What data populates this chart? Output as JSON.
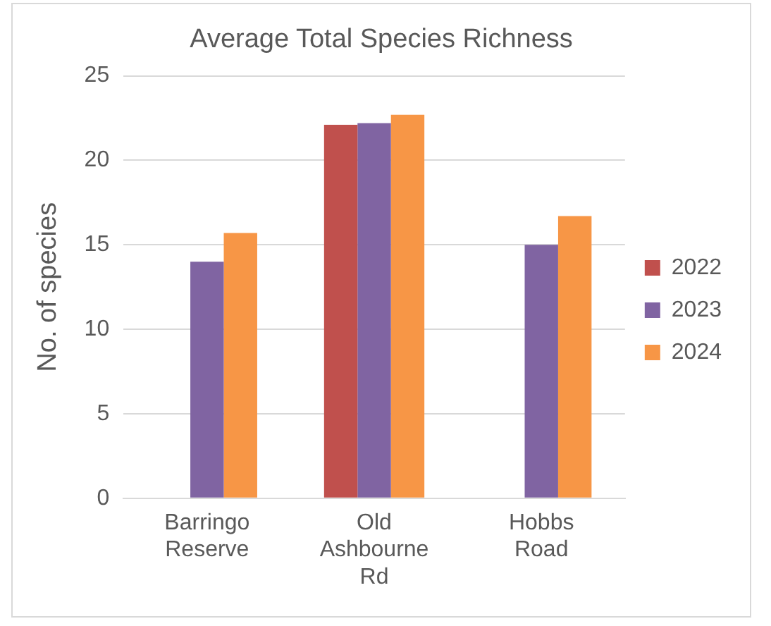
{
  "chart_data": {
    "type": "bar",
    "title": "Average Total Species Richness",
    "ylabel": "No. of species",
    "categories": [
      "Barringo Reserve",
      "Old Ashbourne Rd",
      "Hobbs Road"
    ],
    "series": [
      {
        "name": "2022",
        "color": "#c0504d",
        "values": [
          null,
          22.1,
          null
        ]
      },
      {
        "name": "2023",
        "color": "#8064a2",
        "values": [
          14,
          22.2,
          15
        ]
      },
      {
        "name": "2024",
        "color": "#f79646",
        "values": [
          15.7,
          22.7,
          16.7
        ]
      }
    ],
    "ylim": [
      0,
      25
    ],
    "yticks": [
      0,
      5,
      10,
      15,
      20,
      25
    ],
    "grid": "y",
    "legend": "right"
  }
}
